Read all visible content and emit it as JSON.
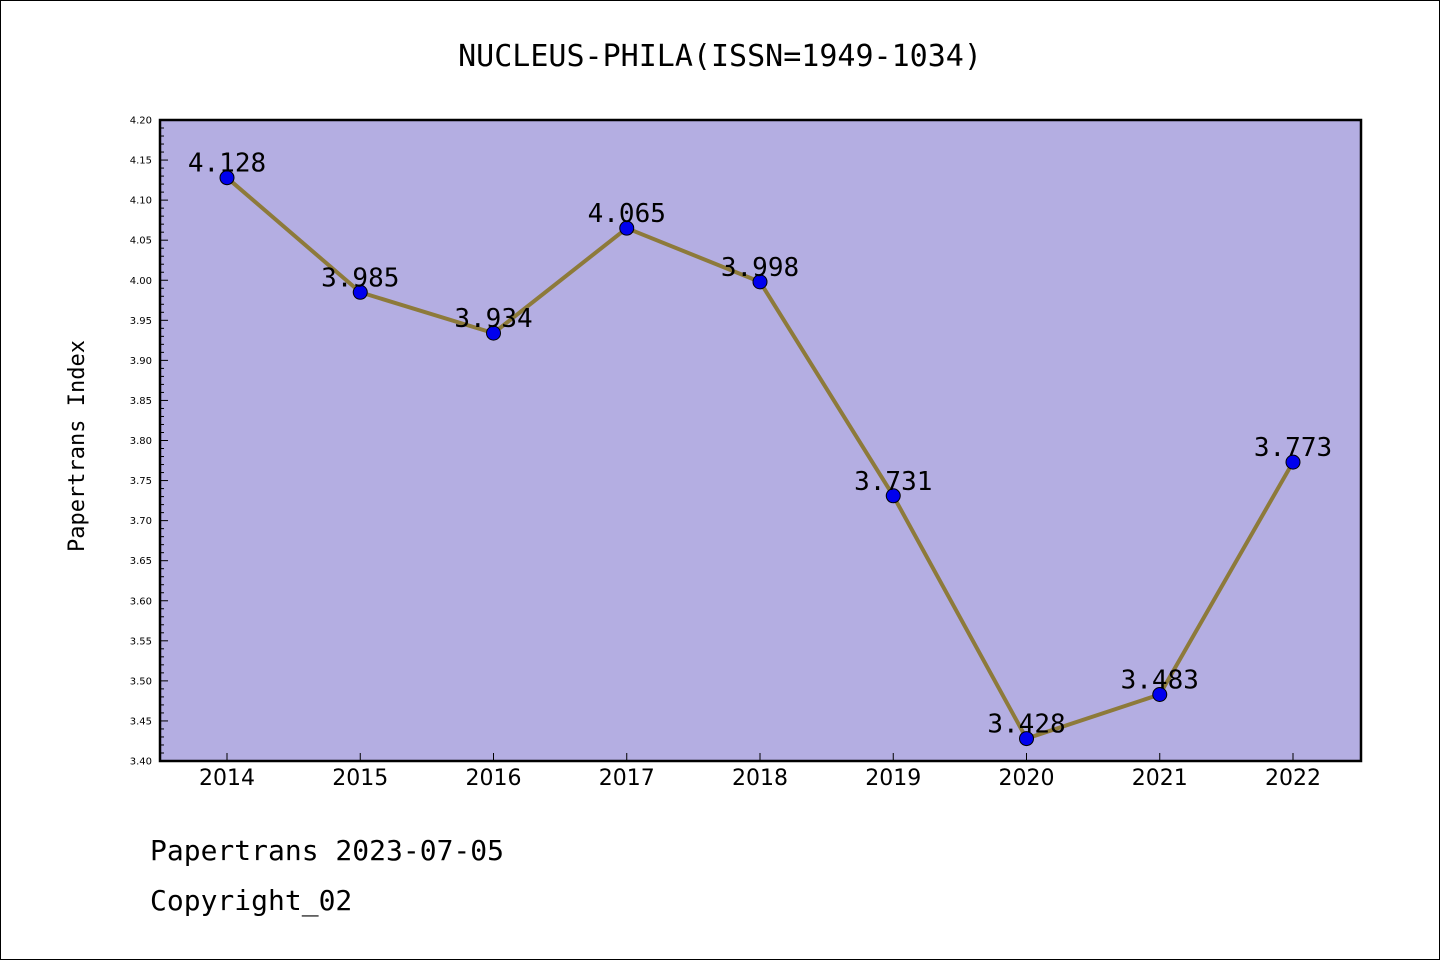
{
  "chart_data": {
    "type": "line",
    "title": "NUCLEUS-PHILA(ISSN=1949-1034)",
    "xlabel": "",
    "ylabel": "Papertrans Index",
    "categories": [
      "2014",
      "2015",
      "2016",
      "2017",
      "2018",
      "2019",
      "2020",
      "2021",
      "2022"
    ],
    "values": [
      4.128,
      3.985,
      3.934,
      4.065,
      3.998,
      3.731,
      3.428,
      3.483,
      3.773
    ],
    "data_labels": [
      "4.128",
      "3.985",
      "3.934",
      "4.065",
      "3.998",
      "3.731",
      "3.428",
      "3.483",
      "3.773"
    ],
    "ylim": [
      3.4,
      4.2
    ],
    "yticks": [
      "3.40",
      "3.45",
      "3.50",
      "3.55",
      "3.60",
      "3.65",
      "3.70",
      "3.75",
      "3.80",
      "3.85",
      "3.90",
      "3.95",
      "4.00",
      "4.05",
      "4.10",
      "4.15",
      "4.20"
    ],
    "grid": false,
    "legend": "none",
    "colors": {
      "plot_background": "#b4aee2",
      "line": "#8d7a3a",
      "marker": "#0000ee"
    }
  },
  "footer": {
    "date_line": "Papertrans 2023-07-05",
    "copyright_line": "Copyright_02"
  }
}
